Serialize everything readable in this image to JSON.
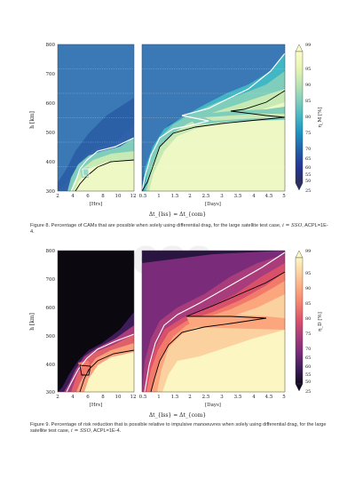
{
  "watermark": "esa",
  "figures": [
    {
      "id": "fig8",
      "caption_label": "Figure 8.",
      "caption_text": "Percentage of CAMs that are possible when solely using differential drag, for the large satellite test case,",
      "caption_math": "i = SSO",
      "caption_tail": ", ACPL=1E-4.",
      "left_panel_unit": "[Hrs]",
      "right_panel_unit": "[Days]",
      "shared_xlabel": "Δt_{lss} = Δt_{com}",
      "ylabel": "h [km]",
      "colorbar_label": "η_M [%]",
      "colorbar_ticks": [
        "99",
        "95",
        "90",
        "85",
        "80",
        "75",
        "70",
        "65",
        "60",
        "55",
        "50",
        "25"
      ],
      "y_ticks": [
        "800",
        "700",
        "600",
        "500",
        "400",
        "300"
      ],
      "x_ticks_hrs": [
        "2",
        "4",
        "6",
        "8",
        "10",
        "12"
      ],
      "x_ticks_days": [
        "0.5",
        "1",
        "1.5",
        "2",
        "2.5",
        "3",
        "3.5",
        "4",
        "4.5",
        "5"
      ]
    },
    {
      "id": "fig9",
      "caption_label": "Figure 9.",
      "caption_text": "Percentage of risk reduction that is possible relative to impulsive manoeuvres when solely using differential drag, for the large satellite test case,",
      "caption_math": "i = SSO",
      "caption_tail": ", ACPL=1E-4.",
      "left_panel_unit": "[Hrs]",
      "right_panel_unit": "[Days]",
      "shared_xlabel": "Δt_{lss} = Δt_{com}",
      "ylabel": "h [km]",
      "colorbar_label": "η_D [%]",
      "colorbar_ticks": [
        "99",
        "95",
        "90",
        "85",
        "80",
        "75",
        "70",
        "65",
        "60",
        "55",
        "50",
        "25"
      ],
      "y_ticks": [
        "800",
        "700",
        "600",
        "500",
        "400",
        "300"
      ],
      "x_ticks_hrs": [
        "2",
        "4",
        "6",
        "8",
        "10",
        "12"
      ],
      "x_ticks_days": [
        "0.5",
        "1",
        "1.5",
        "2",
        "2.5",
        "3",
        "3.5",
        "4",
        "4.5",
        "5"
      ]
    }
  ],
  "colors": {
    "fig8_high": "#fbfcc8",
    "fig8_low": "#2b2d5e",
    "fig9_high": "#fcf6c2",
    "fig9_low": "#120a1f",
    "contour_white": "#ffffff",
    "contour_black": "#000000"
  }
}
